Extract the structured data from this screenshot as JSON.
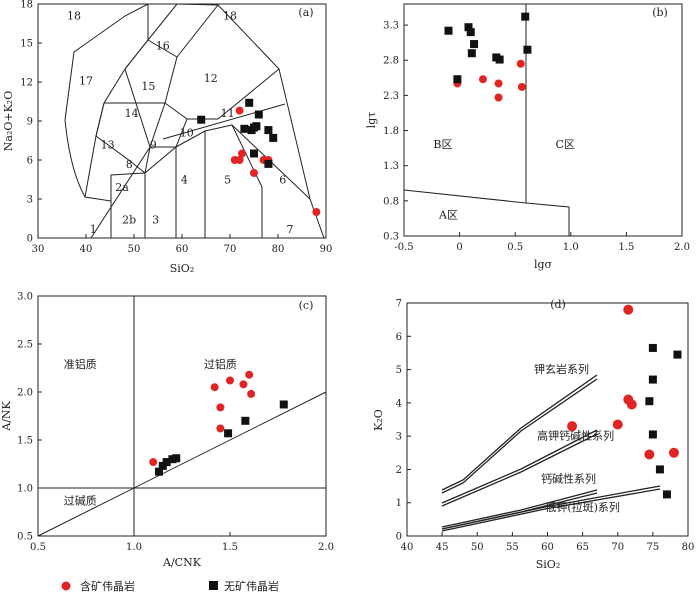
{
  "colors": {
    "mineralized": "#e02424",
    "barren": "#111111",
    "axis": "#222222"
  },
  "legend": {
    "mineralized_label": "含矿伟晶岩",
    "barren_label": "无矿伟晶岩",
    "mineralized_marker": "red-circle",
    "barren_marker": "black-square"
  },
  "chart_data": [
    {
      "panel": "(a)",
      "type": "scatter",
      "xlabel": "SiO₂",
      "ylabel": "Na₂O+K₂O",
      "xlim": [
        30,
        90
      ],
      "ylim": [
        0,
        18
      ],
      "xticks": [
        30,
        40,
        50,
        60,
        70,
        80,
        90
      ],
      "yticks": [
        0,
        3,
        6,
        9,
        12,
        15,
        18
      ],
      "field_labels": [
        {
          "text": "18",
          "x": 37.5,
          "y": 16.8
        },
        {
          "text": "18",
          "x": 70,
          "y": 16.8
        },
        {
          "text": "16",
          "x": 56,
          "y": 14.5
        },
        {
          "text": "17",
          "x": 40,
          "y": 11.8
        },
        {
          "text": "15",
          "x": 53,
          "y": 11.4
        },
        {
          "text": "12",
          "x": 66,
          "y": 12
        },
        {
          "text": "14",
          "x": 49.5,
          "y": 9.3
        },
        {
          "text": "11",
          "x": 69.5,
          "y": 9.3
        },
        {
          "text": "13",
          "x": 44.5,
          "y": 6.9
        },
        {
          "text": "9",
          "x": 54,
          "y": 6.9
        },
        {
          "text": "10",
          "x": 61,
          "y": 7.8
        },
        {
          "text": "8",
          "x": 49,
          "y": 5.4
        },
        {
          "text": "2a",
          "x": 47.5,
          "y": 3.6
        },
        {
          "text": "2b",
          "x": 49,
          "y": 1.1
        },
        {
          "text": "3",
          "x": 54.5,
          "y": 1.1
        },
        {
          "text": "4",
          "x": 60.5,
          "y": 4.2
        },
        {
          "text": "5",
          "x": 69.5,
          "y": 4.2
        },
        {
          "text": "6",
          "x": 81,
          "y": 4.2
        },
        {
          "text": "7",
          "x": 82.5,
          "y": 0.4
        },
        {
          "text": "1",
          "x": 41.5,
          "y": 0.4
        }
      ],
      "series": [
        {
          "name": "含矿伟晶岩",
          "marker": "circle",
          "points": [
            [
              71,
              6
            ],
            [
              72,
              6
            ],
            [
              72.5,
              6.5
            ],
            [
              75,
              5
            ],
            [
              77,
              6
            ],
            [
              78,
              6
            ],
            [
              88,
              2
            ],
            [
              72,
              9.8
            ]
          ]
        },
        {
          "name": "无矿伟晶岩",
          "marker": "square",
          "points": [
            [
              64,
              9.1
            ],
            [
              73,
              8.4
            ],
            [
              74,
              10.4
            ],
            [
              74.5,
              8.3
            ],
            [
              75,
              8.5
            ],
            [
              75.5,
              8.6
            ],
            [
              76,
              9.5
            ],
            [
              78,
              8.3
            ],
            [
              79,
              7.7
            ],
            [
              75,
              6.5
            ],
            [
              78,
              5.7
            ]
          ]
        }
      ]
    },
    {
      "panel": "(b)",
      "type": "scatter",
      "xlabel": "lgσ",
      "ylabel": "lgτ",
      "xlim": [
        -0.5,
        2.0
      ],
      "ylim": [
        0.3,
        3.6
      ],
      "xticks": [
        -0.5,
        0,
        0.5,
        1.0,
        1.5,
        2.0
      ],
      "yticks": [
        0.3,
        0.8,
        1.3,
        1.8,
        2.3,
        2.8,
        3.3
      ],
      "region_labels": [
        {
          "text": "B区",
          "x": -0.15,
          "y": 1.55
        },
        {
          "text": "C区",
          "x": 0.95,
          "y": 1.55
        },
        {
          "text": "A区",
          "x": -0.1,
          "y": 0.55
        }
      ],
      "series": [
        {
          "name": "含矿伟晶岩",
          "marker": "circle",
          "points": [
            [
              -0.02,
              2.47
            ],
            [
              0.21,
              2.53
            ],
            [
              0.35,
              2.47
            ],
            [
              0.35,
              2.27
            ],
            [
              0.55,
              2.75
            ],
            [
              0.56,
              2.42
            ]
          ]
        },
        {
          "name": "无矿伟晶岩",
          "marker": "square",
          "points": [
            [
              -0.1,
              3.22
            ],
            [
              0.08,
              3.27
            ],
            [
              0.1,
              3.2
            ],
            [
              0.13,
              3.03
            ],
            [
              0.11,
              2.9
            ],
            [
              0.33,
              2.84
            ],
            [
              0.36,
              2.81
            ],
            [
              0.59,
              3.42
            ],
            [
              0.61,
              2.95
            ],
            [
              -0.02,
              2.53
            ]
          ]
        }
      ]
    },
    {
      "panel": "(c)",
      "type": "scatter",
      "xlabel": "A/CNK",
      "ylabel": "A/NK",
      "xlim": [
        0.5,
        2.0
      ],
      "ylim": [
        0.5,
        3.0
      ],
      "xticks": [
        0.5,
        1.0,
        1.5,
        2.0
      ],
      "yticks": [
        0.5,
        1.0,
        1.5,
        2.0,
        2.5,
        3.0
      ],
      "region_labels": [
        {
          "text": "准铝质",
          "x": 0.72,
          "y": 2.25
        },
        {
          "text": "过铝质",
          "x": 1.45,
          "y": 2.25
        },
        {
          "text": "过碱质",
          "x": 0.72,
          "y": 0.83
        }
      ],
      "series": [
        {
          "name": "含矿伟晶岩",
          "marker": "circle",
          "points": [
            [
              1.1,
              1.27
            ],
            [
              1.42,
              2.05
            ],
            [
              1.45,
              1.84
            ],
            [
              1.5,
              2.12
            ],
            [
              1.57,
              2.08
            ],
            [
              1.6,
              2.18
            ],
            [
              1.61,
              1.98
            ],
            [
              1.45,
              1.62
            ]
          ]
        },
        {
          "name": "无矿伟晶岩",
          "marker": "square",
          "points": [
            [
              1.13,
              1.17
            ],
            [
              1.15,
              1.23
            ],
            [
              1.17,
              1.27
            ],
            [
              1.2,
              1.3
            ],
            [
              1.22,
              1.31
            ],
            [
              1.49,
              1.57
            ],
            [
              1.58,
              1.7
            ],
            [
              1.78,
              1.87
            ]
          ]
        }
      ]
    },
    {
      "panel": "(d)",
      "type": "scatter",
      "xlabel": "SiO₂",
      "ylabel": "K₂O",
      "xlim": [
        40,
        80
      ],
      "ylim": [
        0,
        7
      ],
      "xticks": [
        40,
        45,
        50,
        55,
        60,
        65,
        70,
        75,
        80
      ],
      "yticks": [
        0,
        1,
        2,
        3,
        4,
        5,
        6,
        7
      ],
      "series_labels": [
        {
          "text": "钾玄岩系列",
          "x": 62,
          "y": 4.9
        },
        {
          "text": "高钾钙碱性系列",
          "x": 64,
          "y": 2.9
        },
        {
          "text": "钙碱性系列",
          "x": 63,
          "y": 1.6
        },
        {
          "text": "低钾(拉斑)系列",
          "x": 65,
          "y": 0.75
        }
      ],
      "series": [
        {
          "name": "含矿伟晶岩",
          "marker": "circle",
          "points": [
            [
              71.5,
              6.8
            ],
            [
              63.5,
              3.3
            ],
            [
              70,
              3.35
            ],
            [
              71.5,
              4.1
            ],
            [
              72,
              3.95
            ],
            [
              74.5,
              2.45
            ],
            [
              78,
              2.5
            ]
          ]
        },
        {
          "name": "无矿伟晶岩",
          "marker": "square",
          "points": [
            [
              75,
              5.65
            ],
            [
              75,
              4.7
            ],
            [
              74.5,
              4.05
            ],
            [
              75,
              3.05
            ],
            [
              78.5,
              5.45
            ],
            [
              76,
              2
            ],
            [
              77,
              1.25
            ]
          ]
        }
      ]
    }
  ]
}
